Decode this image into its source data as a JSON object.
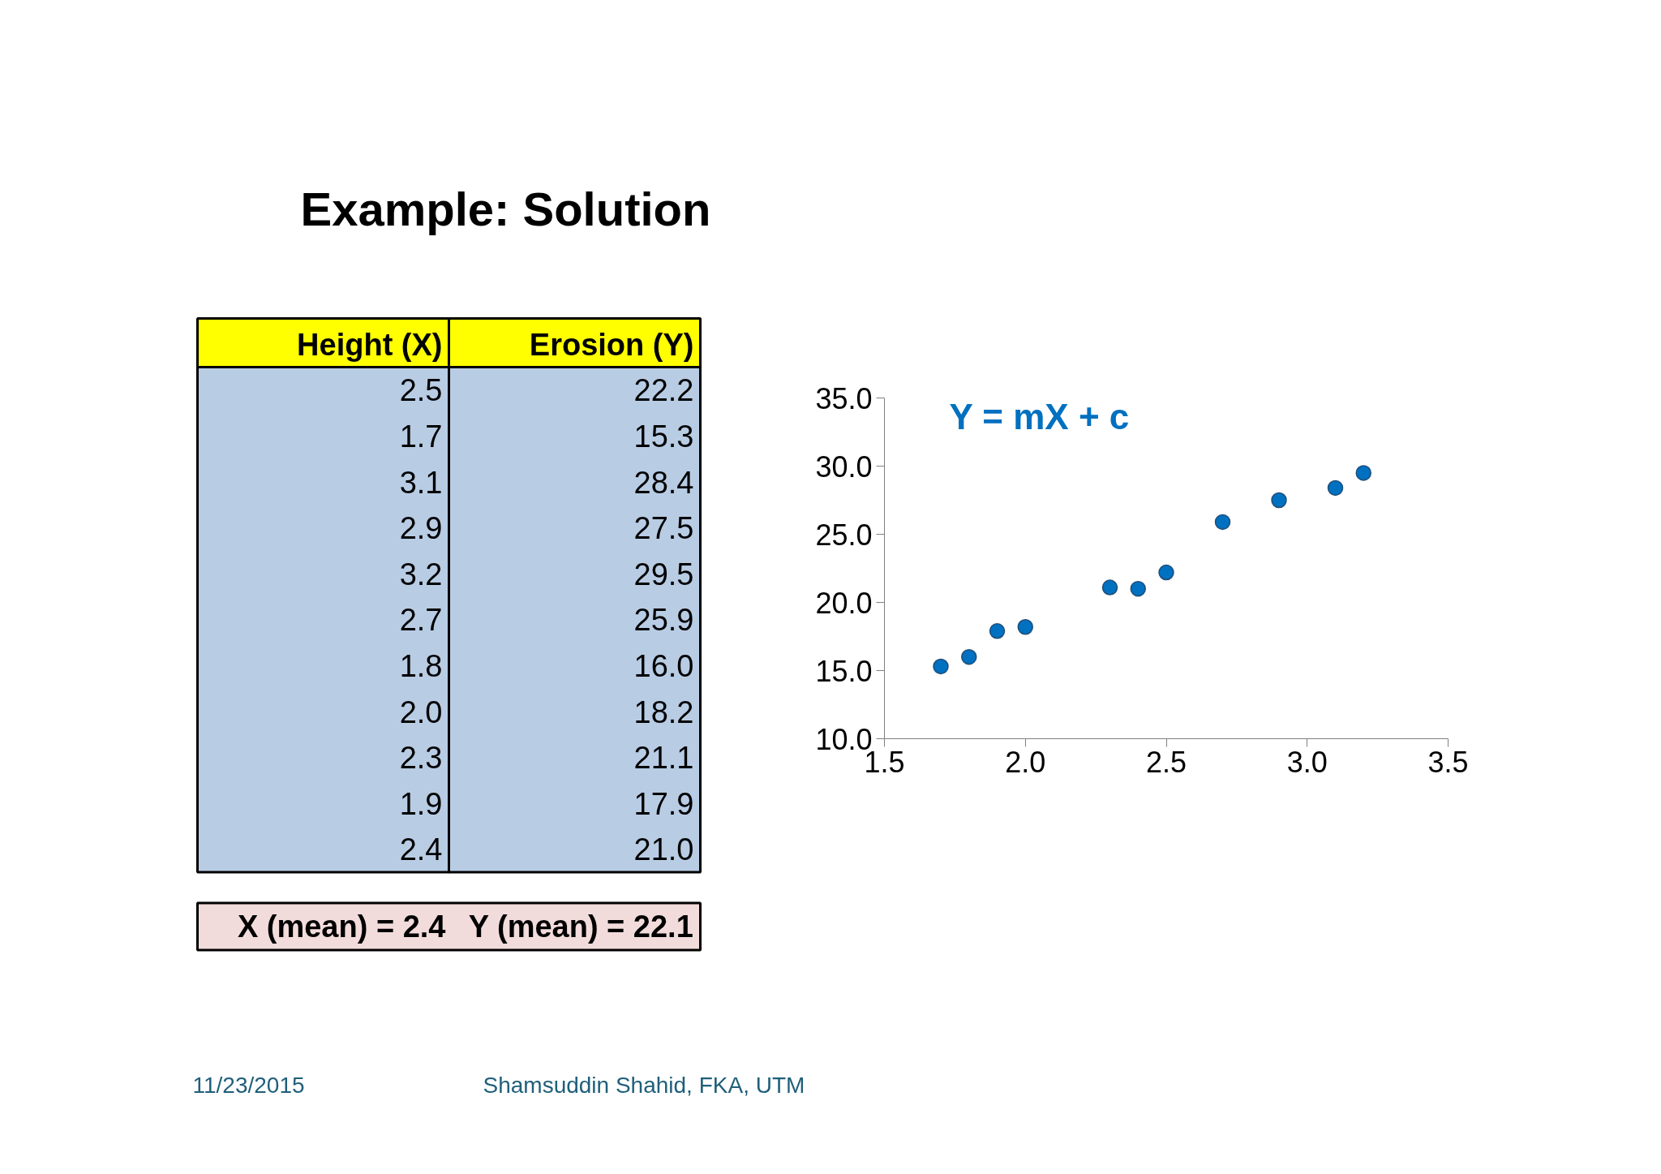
{
  "chart_data": {
    "type": "scatter",
    "title": "Example: Solution",
    "x": [
      2.5,
      1.7,
      3.1,
      2.9,
      3.2,
      2.7,
      1.8,
      2.0,
      2.3,
      1.9,
      2.4
    ],
    "values": [
      22.2,
      15.3,
      28.4,
      27.5,
      29.5,
      25.9,
      16.0,
      18.2,
      21.1,
      17.9,
      21.0
    ],
    "value_labels": [
      [
        "2.5",
        "22.2"
      ],
      [
        "1.7",
        "15.3"
      ],
      [
        "3.1",
        "28.4"
      ],
      [
        "2.9",
        "27.5"
      ],
      [
        "3.2",
        "29.5"
      ],
      [
        "2.7",
        "25.9"
      ],
      [
        "1.8",
        "16.0"
      ],
      [
        "2.0",
        "18.2"
      ],
      [
        "2.3",
        "21.1"
      ],
      [
        "1.9",
        "17.9"
      ],
      [
        "2.4",
        "21.0"
      ]
    ],
    "color": "#0070c0",
    "marker": "circle",
    "grid": false,
    "xlim": [
      1.5,
      3.5
    ],
    "xticks": [
      {
        "value": 1.5,
        "label": "1.5"
      },
      {
        "value": 2,
        "label": "2.0"
      },
      {
        "value": 2.5,
        "label": "2.5"
      },
      {
        "value": 3,
        "label": "3.0"
      },
      {
        "value": 3.5,
        "label": "3.5"
      }
    ],
    "ylim": [
      10,
      35
    ],
    "yticks": [
      {
        "value": 10,
        "label": "10.0"
      },
      {
        "value": 15,
        "label": "15.0"
      },
      {
        "value": 20,
        "label": "20.0"
      },
      {
        "value": 25,
        "label": "25.0"
      },
      {
        "value": 30,
        "label": "30.0"
      },
      {
        "value": 35,
        "label": "35.0"
      }
    ],
    "annotations": [
      "Y = mX + c",
      "Height (X)",
      "Erosion (Y)",
      "X (mean) = 2.4",
      "Y (mean) = 22.1",
      "11/23/2015",
      "Shamsuddin Shahid, FKA, UTM"
    ]
  }
}
